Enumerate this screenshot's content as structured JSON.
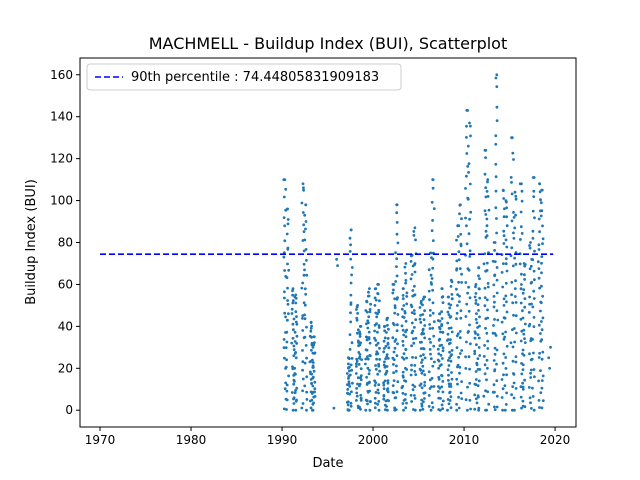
{
  "chart_data": {
    "type": "scatter",
    "title": "MACHMELL - Buildup Index (BUI), Scatterplot",
    "xlabel": "Date",
    "ylabel": "Buildup Index (BUI)",
    "xlim": [
      1967.8,
      2022.3
    ],
    "ylim": [
      -8,
      168
    ],
    "xticks": [
      "1970",
      "1980",
      "1990",
      "2000",
      "2010",
      "2020"
    ],
    "xtick_values": [
      1970,
      1980,
      1990,
      2000,
      2010,
      2020
    ],
    "yticks": [
      "0",
      "20",
      "40",
      "60",
      "80",
      "100",
      "120",
      "140",
      "160"
    ],
    "ytick_values": [
      0,
      20,
      40,
      60,
      80,
      100,
      120,
      140,
      160
    ],
    "grid": false,
    "legend": {
      "placement": "upper-left",
      "label": "90th percentile : 74.44805831909183"
    },
    "percentile_line": {
      "name": "90th percentile",
      "value": 74.44805831909183,
      "x_range": [
        1970,
        2019.8
      ],
      "color": "#0000ff"
    },
    "point_color": "#1f77b4",
    "seasons": [
      {
        "year": 1990.3,
        "peak": 110
      },
      {
        "year": 1990.6,
        "peak": 96
      },
      {
        "year": 1991.2,
        "peak": 58
      },
      {
        "year": 1991.5,
        "peak": 55
      },
      {
        "year": 1992.3,
        "peak": 108
      },
      {
        "year": 1992.6,
        "peak": 98
      },
      {
        "year": 1993.2,
        "peak": 42
      },
      {
        "year": 1993.5,
        "peak": 35
      },
      {
        "year": 1997.3,
        "peak": 25
      },
      {
        "year": 1997.6,
        "peak": 86
      },
      {
        "year": 1998.3,
        "peak": 50
      },
      {
        "year": 1998.6,
        "peak": 40
      },
      {
        "year": 1999.3,
        "peak": 52
      },
      {
        "year": 1999.6,
        "peak": 58
      },
      {
        "year": 2000.3,
        "peak": 58
      },
      {
        "year": 2000.6,
        "peak": 60
      },
      {
        "year": 2001.3,
        "peak": 40
      },
      {
        "year": 2001.6,
        "peak": 44
      },
      {
        "year": 2002.3,
        "peak": 60
      },
      {
        "year": 2002.6,
        "peak": 98
      },
      {
        "year": 2003.3,
        "peak": 58
      },
      {
        "year": 2003.6,
        "peak": 70
      },
      {
        "year": 2004.3,
        "peak": 74
      },
      {
        "year": 2004.6,
        "peak": 87
      },
      {
        "year": 2005.3,
        "peak": 52
      },
      {
        "year": 2005.6,
        "peak": 54
      },
      {
        "year": 2006.3,
        "peak": 75
      },
      {
        "year": 2006.6,
        "peak": 110
      },
      {
        "year": 2007.3,
        "peak": 46
      },
      {
        "year": 2007.6,
        "peak": 58
      },
      {
        "year": 2008.3,
        "peak": 54
      },
      {
        "year": 2008.6,
        "peak": 62
      },
      {
        "year": 2009.3,
        "peak": 88
      },
      {
        "year": 2009.6,
        "peak": 98
      },
      {
        "year": 2010.3,
        "peak": 143
      },
      {
        "year": 2010.6,
        "peak": 137
      },
      {
        "year": 2011.3,
        "peak": 60
      },
      {
        "year": 2011.6,
        "peak": 68
      },
      {
        "year": 2012.3,
        "peak": 124
      },
      {
        "year": 2012.6,
        "peak": 110
      },
      {
        "year": 2013.3,
        "peak": 80
      },
      {
        "year": 2013.6,
        "peak": 160
      },
      {
        "year": 2014.3,
        "peak": 105
      },
      {
        "year": 2014.6,
        "peak": 100
      },
      {
        "year": 2015.3,
        "peak": 130
      },
      {
        "year": 2015.6,
        "peak": 104
      },
      {
        "year": 2016.3,
        "peak": 108
      },
      {
        "year": 2016.6,
        "peak": 70
      },
      {
        "year": 2017.3,
        "peak": 80
      },
      {
        "year": 2017.6,
        "peak": 111
      },
      {
        "year": 2018.3,
        "peak": 108
      },
      {
        "year": 2018.6,
        "peak": 105
      }
    ],
    "isolated_points": [
      {
        "x": 1995.7,
        "y": 1
      },
      {
        "x": 1996.0,
        "y": 72
      },
      {
        "x": 1996.1,
        "y": 69
      },
      {
        "x": 2019.3,
        "y": 25
      },
      {
        "x": 2019.5,
        "y": 30
      },
      {
        "x": 2019.4,
        "y": 20
      }
    ]
  }
}
